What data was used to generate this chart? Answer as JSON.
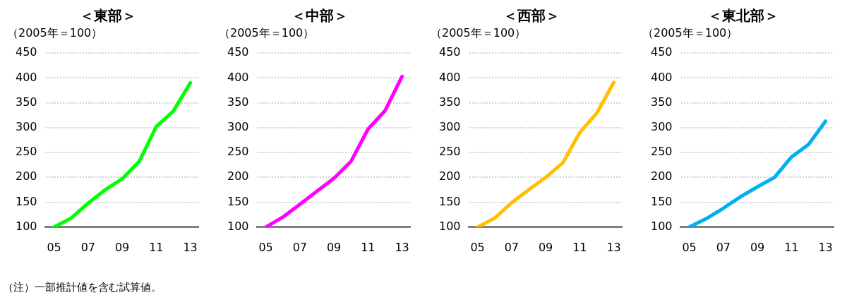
{
  "chart_data": [
    {
      "type": "line",
      "title": "＜東部＞",
      "ylabel": "（2005年＝100）",
      "categories": [
        "05",
        null,
        "07",
        null,
        "09",
        null,
        "11",
        null,
        "13"
      ],
      "series": [
        {
          "color": "#00ff00",
          "values": [
            100,
            118,
            148,
            175,
            197,
            232,
            302,
            333,
            390
          ]
        }
      ],
      "ylim": [
        100,
        450
      ],
      "yticks": [
        100,
        150,
        200,
        250,
        300,
        350,
        400,
        450
      ],
      "grid": "y",
      "marker": "none",
      "annotations": [
        "（注）一部推計値を含む試算値。"
      ]
    },
    {
      "type": "line",
      "title": "＜中部＞",
      "ylabel": "（2005年＝100）",
      "categories": [
        "05",
        null,
        "07",
        null,
        "09",
        null,
        "11",
        null,
        "13"
      ],
      "series": [
        {
          "color": "#ff00ff",
          "values": [
            100,
            120,
            146,
            172,
            198,
            232,
            297,
            334,
            403
          ]
        }
      ],
      "ylim": [
        100,
        450
      ],
      "yticks": [
        100,
        150,
        200,
        250,
        300,
        350,
        400,
        450
      ],
      "grid": "y",
      "marker": "none"
    },
    {
      "type": "line",
      "title": "＜西部＞",
      "ylabel": "（2005年＝100）",
      "categories": [
        "05",
        null,
        "07",
        null,
        "09",
        null,
        "11",
        null,
        "13"
      ],
      "series": [
        {
          "color": "#ffc000",
          "values": [
            100,
            118,
            149,
            175,
            200,
            229,
            290,
            329,
            391
          ]
        }
      ],
      "ylim": [
        100,
        450
      ],
      "yticks": [
        100,
        150,
        200,
        250,
        300,
        350,
        400,
        450
      ],
      "grid": "y",
      "marker": "none"
    },
    {
      "type": "line",
      "title": "＜東北部＞",
      "ylabel": "（2005年＝100）",
      "categories": [
        "05",
        null,
        "07",
        null,
        "09",
        null,
        "11",
        null,
        "13"
      ],
      "series": [
        {
          "color": "#00b0f0",
          "values": [
            100,
            117,
            138,
            161,
            181,
            200,
            241,
            266,
            313
          ]
        }
      ],
      "ylim": [
        100,
        450
      ],
      "yticks": [
        100,
        150,
        200,
        250,
        300,
        350,
        400,
        450
      ],
      "grid": "y",
      "marker": "none"
    }
  ]
}
